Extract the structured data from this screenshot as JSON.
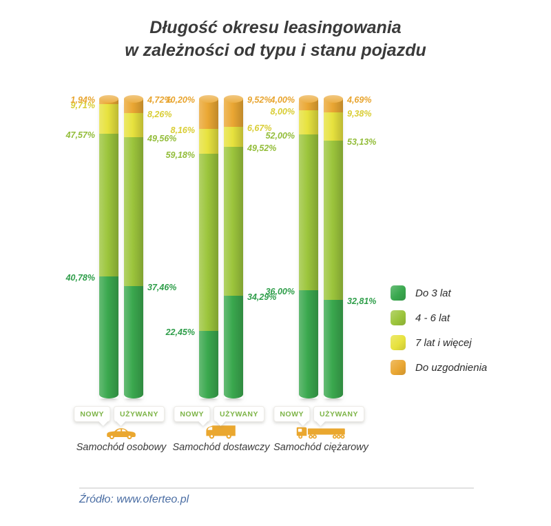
{
  "title": {
    "line1": "Długość okresu leasingowania",
    "line2": "w zależności od typu i stanu pojazdu"
  },
  "source": "Źródło: www.oferteo.pl",
  "legend": [
    {
      "label": "Do 3 lat",
      "color": "#3aa84e"
    },
    {
      "label": "4 - 6 lat",
      "color": "#9cc53c"
    },
    {
      "label": "7 lat i więcej",
      "color": "#e7e23e"
    },
    {
      "label": "Do uzgodnienia",
      "color": "#eaa733"
    }
  ],
  "chart_data": {
    "type": "bar",
    "stacked": true,
    "value_unit": "%",
    "title": "Długość okresu leasingowania w zależności od typu i stanu pojazdu",
    "legend_position": "right",
    "ylim": [
      0,
      100
    ],
    "grid": false,
    "series_labels": [
      "Do 3 lat",
      "4 - 6 lat",
      "7 lat i więcej",
      "Do uzgodnienia"
    ],
    "series_colors": [
      "#3aa84e",
      "#9cc53c",
      "#e7e23e",
      "#eaa733"
    ],
    "label_colors": [
      "#2f9e4a",
      "#93bd3a",
      "#d9cd34",
      "#e8a42e"
    ],
    "groups": [
      {
        "category": "Samochód osobowy",
        "icon": "car-icon",
        "bars": [
          {
            "label": "NOWY",
            "values": [
              40.78,
              47.57,
              9.71,
              1.94
            ]
          },
          {
            "label": "UŻYWANY",
            "values": [
              37.46,
              49.56,
              8.26,
              4.72
            ]
          }
        ]
      },
      {
        "category": "Samochód dostawczy",
        "icon": "van-icon",
        "bars": [
          {
            "label": "NOWY",
            "values": [
              22.45,
              59.18,
              8.16,
              10.2
            ]
          },
          {
            "label": "UŻYWANY",
            "values": [
              34.29,
              49.52,
              6.67,
              9.52
            ]
          }
        ]
      },
      {
        "category": "Samochód ciężarowy",
        "icon": "truck-icon",
        "bars": [
          {
            "label": "NOWY",
            "values": [
              36.0,
              52.0,
              8.0,
              4.0
            ]
          },
          {
            "label": "UŻYWANY",
            "values": [
              32.81,
              53.13,
              9.38,
              4.69
            ]
          }
        ]
      }
    ]
  }
}
